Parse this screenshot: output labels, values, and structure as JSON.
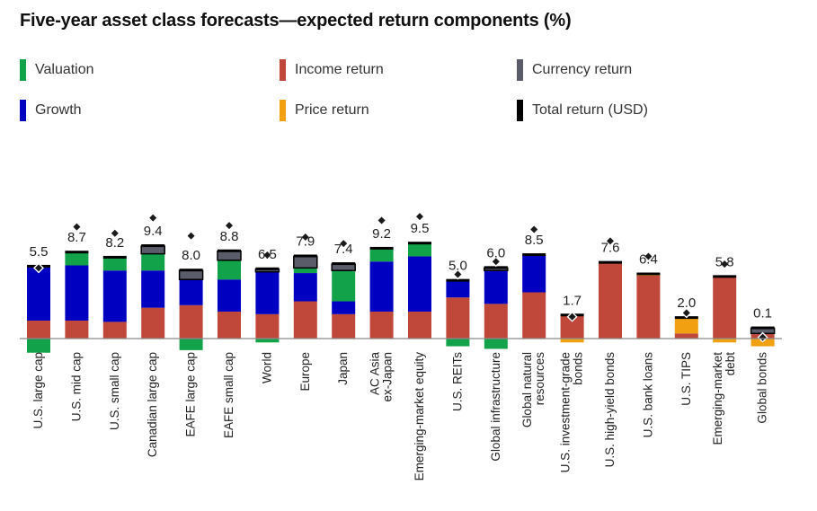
{
  "chart_data": {
    "type": "bar",
    "stacked": true,
    "title": "Five-year asset class forecasts—expected return components (%)",
    "categories": [
      [
        "U.S. large cap"
      ],
      [
        "U.S. mid cap"
      ],
      [
        "U.S. small cap"
      ],
      [
        "Canadian large cap"
      ],
      [
        "EAFE large cap"
      ],
      [
        "EAFE small cap"
      ],
      [
        "World"
      ],
      [
        "Europe"
      ],
      [
        "Japan"
      ],
      [
        "AC Asia",
        "ex-Japan"
      ],
      [
        "Emerging-market equity"
      ],
      [
        "U.S. REITs"
      ],
      [
        "Global infrastructure"
      ],
      [
        "Global natural",
        "resources"
      ],
      [
        "U.S. investment-grade",
        "bonds"
      ],
      [
        "U.S. high-yield bonds"
      ],
      [
        "U.S. bank loans"
      ],
      [
        "U.S. TIPS"
      ],
      [
        "Emerging-market",
        "debt"
      ],
      [
        "Global bonds"
      ]
    ],
    "series": [
      {
        "name": "Valuation",
        "color": "#12a24a",
        "values": [
          -1.1,
          1.0,
          1.0,
          1.3,
          -0.9,
          1.5,
          -0.3,
          0.4,
          2.4,
          1.0,
          1.0,
          -0.6,
          -0.8,
          0.0,
          0.0,
          0.0,
          0.0,
          0.0,
          0.0,
          0.0
        ]
      },
      {
        "name": "Growth",
        "color": "#0000c0",
        "values": [
          4.2,
          4.3,
          4.0,
          2.9,
          2.0,
          2.5,
          3.3,
          2.2,
          1.0,
          3.9,
          4.3,
          1.3,
          2.6,
          2.9,
          0.0,
          0.0,
          0.0,
          0.0,
          0.0,
          0.0
        ]
      },
      {
        "name": "Income return",
        "color": "#c0483a",
        "values": [
          1.4,
          1.4,
          1.3,
          2.4,
          2.6,
          2.1,
          1.9,
          2.9,
          1.9,
          2.1,
          2.1,
          3.2,
          2.7,
          3.6,
          1.8,
          5.9,
          4.9,
          0.4,
          4.8,
          0.4
        ]
      },
      {
        "name": "Price return",
        "color": "#f0a010",
        "values": [
          0.0,
          0.0,
          0.0,
          0.0,
          0.0,
          0.0,
          0.0,
          0.0,
          0.0,
          0.0,
          0.0,
          0.0,
          0.0,
          0.0,
          -0.3,
          0.0,
          0.1,
          1.2,
          -0.3,
          -0.6
        ]
      },
      {
        "name": "Currency return",
        "color": "#5a5c6a",
        "values": [
          0.0,
          0.0,
          0.0,
          0.6,
          0.7,
          0.7,
          0.2,
          0.9,
          0.5,
          0.0,
          0.0,
          0.0,
          0.2,
          0.0,
          0.0,
          0.0,
          0.0,
          0.0,
          0.0,
          0.4
        ]
      }
    ],
    "totals": {
      "name": "Total return (USD)",
      "color": "#000000",
      "values": [
        5.5,
        8.7,
        8.2,
        9.4,
        8.0,
        8.8,
        6.5,
        7.9,
        7.4,
        9.2,
        9.5,
        5.0,
        6.0,
        8.5,
        1.7,
        7.6,
        6.4,
        2.0,
        5.8,
        0.1
      ],
      "labels": [
        "5.5",
        "8.7",
        "8.2",
        "9.4",
        "8.0",
        "8.8",
        "6.5",
        "7.9",
        "7.4",
        "9.2",
        "9.5",
        "5.0",
        "6.0",
        "8.5",
        "1.7",
        "7.6",
        "6.4",
        "2.0",
        "5.8",
        "0.1"
      ]
    },
    "ylim": [
      -1.2,
      10.5
    ],
    "grid": false,
    "legend_position": "top"
  },
  "legend": [
    {
      "label": "Valuation",
      "color": "#12a24a"
    },
    {
      "label": "Income return",
      "color": "#c0483a"
    },
    {
      "label": "Currency return",
      "color": "#5a5c6a"
    },
    {
      "label": "Growth",
      "color": "#0000c0"
    },
    {
      "label": "Price return",
      "color": "#f0a010"
    },
    {
      "label": "Total return (USD)",
      "color": "#000000"
    }
  ]
}
